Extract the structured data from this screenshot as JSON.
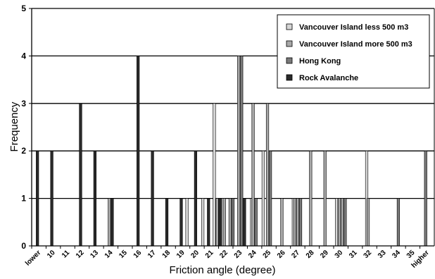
{
  "chart_data": {
    "type": "bar",
    "title": "",
    "xlabel": "Friction angle (degree)",
    "ylabel": "Frequency",
    "ylim": [
      0,
      5
    ],
    "yticks": [
      "0",
      "1",
      "2",
      "3",
      "4",
      "5"
    ],
    "grid": true,
    "legend_position": "top-right",
    "categories": [
      "lower",
      "10",
      "11",
      "12",
      "13",
      "14",
      "15",
      "16",
      "17",
      "18",
      "19",
      "20",
      "21",
      "22",
      "23",
      "24",
      "25",
      "26",
      "27",
      "28",
      "29",
      "30",
      "31",
      "32",
      "33",
      "34",
      "35",
      "higher"
    ],
    "series": [
      {
        "name": "Vancouver Island less 500 m3",
        "color": "#d6d6d6",
        "points": [
          {
            "x": 19.3,
            "y": 1
          },
          {
            "x": 20.4,
            "y": 1
          },
          {
            "x": 21.2,
            "y": 3
          },
          {
            "x": 21.8,
            "y": 1
          },
          {
            "x": 23.8,
            "y": 1
          },
          {
            "x": 24.6,
            "y": 2
          },
          {
            "x": 26.7,
            "y": 1
          },
          {
            "x": 29.7,
            "y": 1
          },
          {
            "x": 31.8,
            "y": 2
          }
        ]
      },
      {
        "name": "Vancouver Island more 500 m3",
        "color": "#a8a8a8",
        "points": [
          {
            "x": 13.9,
            "y": 1
          },
          {
            "x": 21.4,
            "y": 1
          },
          {
            "x": 21.9,
            "y": 1
          },
          {
            "x": 22.3,
            "y": 1
          },
          {
            "x": 22.9,
            "y": 4
          },
          {
            "x": 23.9,
            "y": 3
          },
          {
            "x": 24.9,
            "y": 3
          },
          {
            "x": 25.9,
            "y": 1
          },
          {
            "x": 26.8,
            "y": 1
          },
          {
            "x": 27.0,
            "y": 1
          },
          {
            "x": 27.9,
            "y": 2
          },
          {
            "x": 28.9,
            "y": 2
          },
          {
            "x": 29.9,
            "y": 1
          },
          {
            "x": 30.1,
            "y": 1
          },
          {
            "x": 31.9,
            "y": 1
          }
        ]
      },
      {
        "name": "Hong Kong",
        "color": "#7a7a7a",
        "points": [
          {
            "x": 22.5,
            "y": 1
          },
          {
            "x": 23.1,
            "y": 4
          },
          {
            "x": 24.1,
            "y": 1
          },
          {
            "x": 25.1,
            "y": 2
          },
          {
            "x": 27.2,
            "y": 1
          },
          {
            "x": 30.3,
            "y": 1
          },
          {
            "x": 34.0,
            "y": 1
          },
          {
            "x": 35.9,
            "y": 2
          }
        ]
      },
      {
        "name": "Rock Avalanche",
        "color": "#2a2a2a",
        "points": [
          {
            "x": 8.9,
            "y": 2
          },
          {
            "x": 9.9,
            "y": 2
          },
          {
            "x": 11.9,
            "y": 3
          },
          {
            "x": 12.9,
            "y": 2
          },
          {
            "x": 14.1,
            "y": 1
          },
          {
            "x": 15.9,
            "y": 4
          },
          {
            "x": 16.9,
            "y": 2
          },
          {
            "x": 17.9,
            "y": 1
          },
          {
            "x": 18.9,
            "y": 1
          },
          {
            "x": 19.9,
            "y": 2
          },
          {
            "x": 20.8,
            "y": 1
          },
          {
            "x": 21.6,
            "y": 1
          },
          {
            "x": 23.3,
            "y": 1
          }
        ]
      }
    ]
  }
}
